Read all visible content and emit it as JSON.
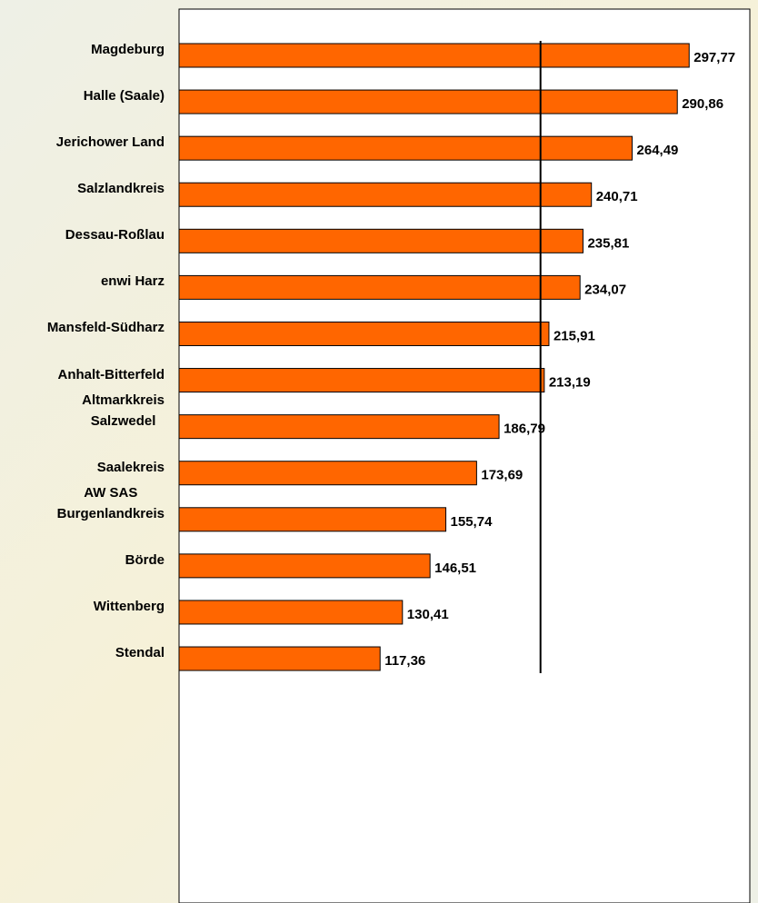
{
  "chart_data": {
    "type": "bar",
    "orientation": "horizontal",
    "categories": [
      "Magdeburg",
      "Halle (Saale)",
      "Jerichower Land",
      "Salzlandkreis",
      "Dessau-Roßlau",
      "enwi Harz",
      "Mansfeld-Südharz",
      "Anhalt-Bitterfeld",
      "Altmarkkreis\nSalzwedel",
      "Saalekreis",
      "AW SAS\nBurgenlandkreis",
      "Börde",
      "Wittenberg",
      "Stendal"
    ],
    "values": [
      297.77,
      290.86,
      264.49,
      240.71,
      235.81,
      234.07,
      215.91,
      213.19,
      186.79,
      173.69,
      155.74,
      146.51,
      130.41,
      117.36
    ],
    "value_labels": [
      "297,77",
      "290,86",
      "264,49",
      "240,71",
      "235,81",
      "234,07",
      "215,91",
      "213,19",
      "186,79",
      "173,69",
      "155,74",
      "146,51",
      "130,41",
      "117,36"
    ],
    "color": "#ff6600",
    "xlim": [
      0,
      330
    ],
    "reference_line": 211
  }
}
